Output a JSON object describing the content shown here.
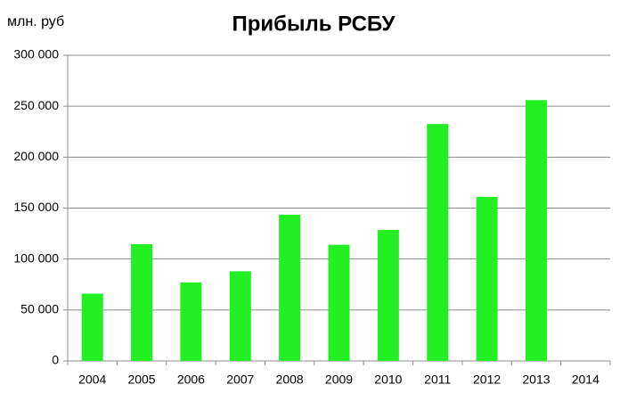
{
  "chart_data": {
    "type": "bar",
    "title": "Прибыль РСБУ",
    "y_label": "млн. руб",
    "categories": [
      "2004",
      "2005",
      "2006",
      "2007",
      "2008",
      "2009",
      "2010",
      "2011",
      "2012",
      "2013",
      "2014"
    ],
    "values": [
      66000,
      114500,
      77000,
      88000,
      143500,
      114000,
      128500,
      232500,
      161000,
      256000,
      null
    ],
    "color": "#22f022",
    "ylim": [
      0,
      300000
    ],
    "yticks": [
      0,
      {
        "value": 50000,
        "label": "50 000"
      },
      {
        "value": 100000,
        "label": "100 000"
      },
      {
        "value": 150000,
        "label": "150 000"
      },
      {
        "value": 200000,
        "label": "200 000"
      },
      {
        "value": 250000,
        "label": "250 000"
      },
      {
        "value": 300000,
        "label": "300 000"
      }
    ],
    "grid": true
  }
}
